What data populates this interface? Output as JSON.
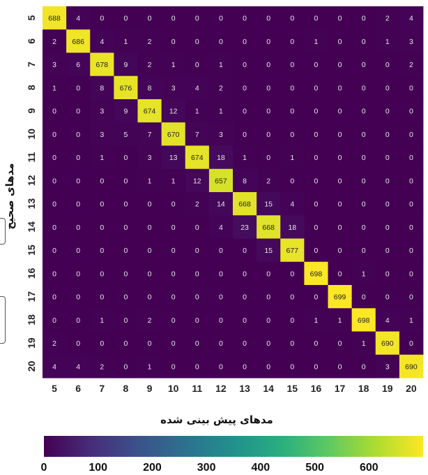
{
  "chart_data": {
    "type": "heatmap",
    "title": "",
    "xlabel": "مدهای پیش بینی شده",
    "ylabel": "مدهای صحیح",
    "x_categories": [
      "5",
      "6",
      "7",
      "8",
      "9",
      "10",
      "11",
      "12",
      "13",
      "14",
      "15",
      "16",
      "17",
      "18",
      "19",
      "20"
    ],
    "y_categories": [
      "5",
      "6",
      "7",
      "8",
      "9",
      "10",
      "11",
      "12",
      "13",
      "14",
      "15",
      "16",
      "17",
      "18",
      "19",
      "20"
    ],
    "values": [
      [
        688,
        4,
        0,
        0,
        0,
        0,
        0,
        0,
        0,
        0,
        0,
        0,
        0,
        0,
        2,
        4
      ],
      [
        2,
        686,
        4,
        1,
        2,
        0,
        0,
        0,
        0,
        0,
        0,
        1,
        0,
        0,
        1,
        3
      ],
      [
        3,
        6,
        678,
        9,
        2,
        1,
        0,
        1,
        0,
        0,
        0,
        0,
        0,
        0,
        0,
        2
      ],
      [
        1,
        0,
        8,
        676,
        8,
        3,
        4,
        2,
        0,
        0,
        0,
        0,
        0,
        0,
        0,
        0
      ],
      [
        0,
        0,
        3,
        9,
        674,
        12,
        1,
        1,
        0,
        0,
        0,
        0,
        0,
        0,
        0,
        0
      ],
      [
        0,
        0,
        3,
        5,
        7,
        670,
        7,
        3,
        0,
        0,
        0,
        0,
        0,
        0,
        0,
        0
      ],
      [
        0,
        0,
        1,
        0,
        3,
        13,
        674,
        18,
        1,
        0,
        1,
        0,
        0,
        0,
        0,
        0
      ],
      [
        0,
        0,
        0,
        0,
        1,
        1,
        12,
        657,
        8,
        2,
        0,
        0,
        0,
        0,
        0,
        0
      ],
      [
        0,
        0,
        0,
        0,
        0,
        0,
        2,
        14,
        668,
        15,
        4,
        0,
        0,
        0,
        0,
        0
      ],
      [
        0,
        0,
        0,
        0,
        0,
        0,
        0,
        4,
        23,
        668,
        18,
        0,
        0,
        0,
        0,
        0
      ],
      [
        0,
        0,
        0,
        0,
        0,
        0,
        0,
        0,
        0,
        15,
        677,
        0,
        0,
        0,
        0,
        0
      ],
      [
        0,
        0,
        0,
        0,
        0,
        0,
        0,
        0,
        0,
        0,
        0,
        698,
        0,
        1,
        0,
        0
      ],
      [
        0,
        0,
        0,
        0,
        0,
        0,
        0,
        0,
        0,
        0,
        0,
        0,
        699,
        0,
        0,
        0
      ],
      [
        0,
        0,
        1,
        0,
        2,
        0,
        0,
        0,
        0,
        0,
        0,
        1,
        1,
        698,
        4,
        1
      ],
      [
        2,
        0,
        0,
        0,
        0,
        0,
        0,
        0,
        0,
        0,
        0,
        0,
        0,
        1,
        690,
        0
      ],
      [
        4,
        4,
        2,
        0,
        1,
        0,
        0,
        0,
        0,
        0,
        0,
        0,
        0,
        0,
        3,
        690
      ]
    ],
    "colormap": "viridis",
    "color_range": [
      0,
      700
    ],
    "colorbar": {
      "orientation": "horizontal",
      "placement": "bottom",
      "ticks": [
        0,
        100,
        200,
        300,
        400,
        500,
        600
      ]
    },
    "grid": false
  }
}
